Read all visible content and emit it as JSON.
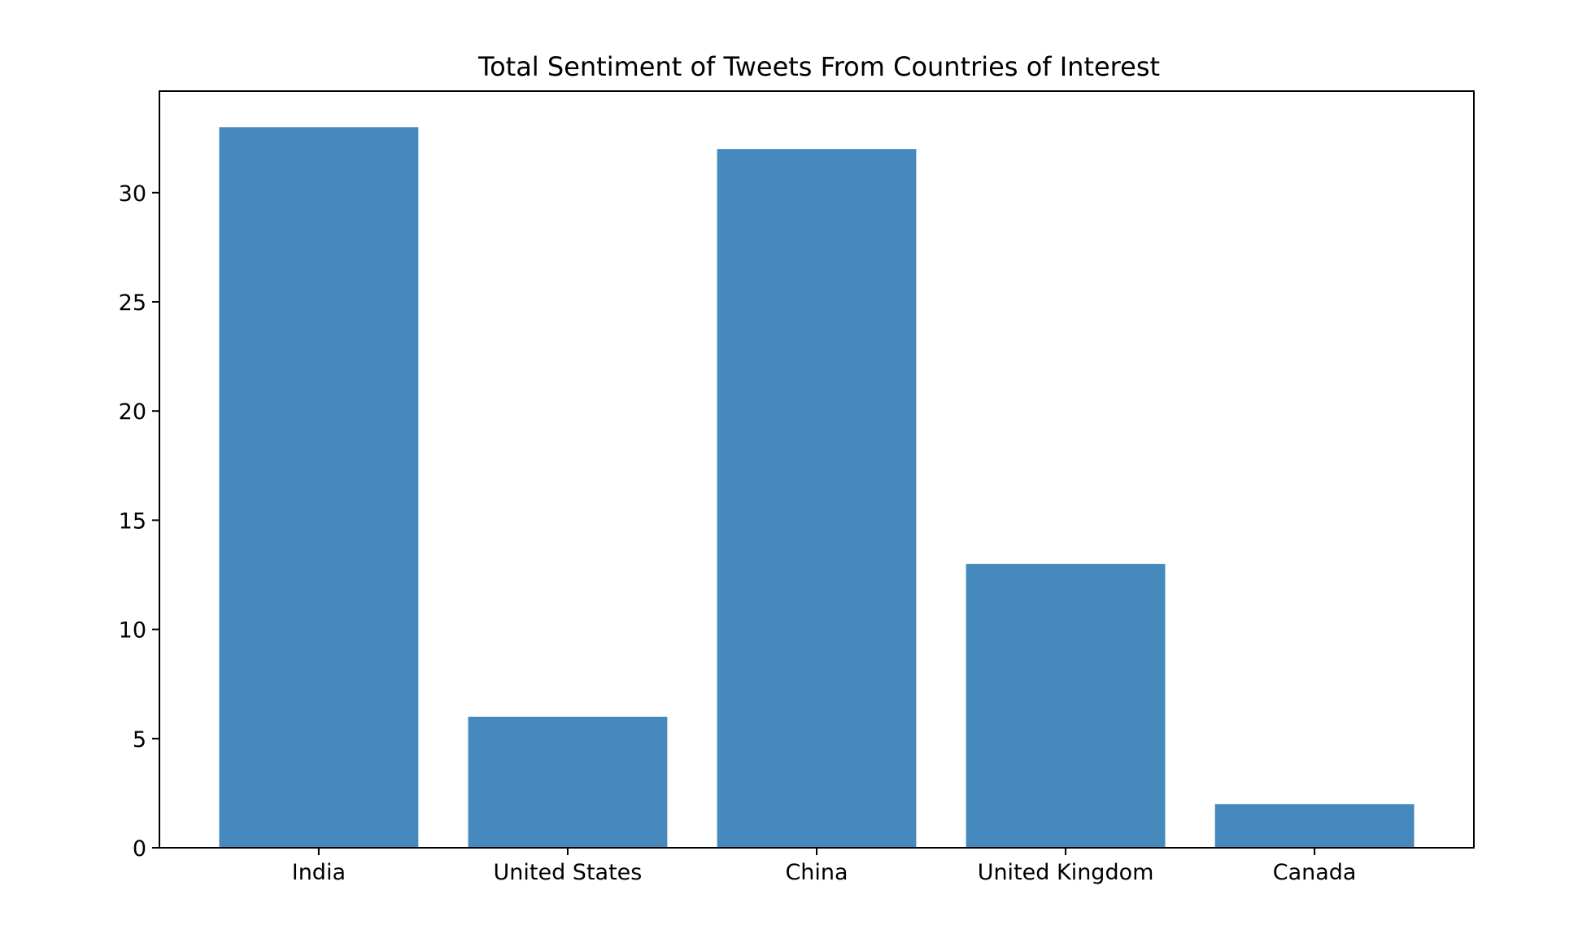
{
  "chart_data": {
    "type": "bar",
    "title": "Total Sentiment of Tweets From Countries of Interest",
    "xlabel": "",
    "ylabel": "",
    "categories": [
      "India",
      "United States",
      "China",
      "United Kingdom",
      "Canada"
    ],
    "values": [
      33,
      6,
      32,
      13,
      2
    ],
    "ylim": [
      0,
      34.65
    ],
    "yticks": [
      0,
      5,
      10,
      15,
      20,
      25,
      30
    ],
    "grid": false,
    "legend": "none",
    "bar_color": "#4589bd"
  }
}
